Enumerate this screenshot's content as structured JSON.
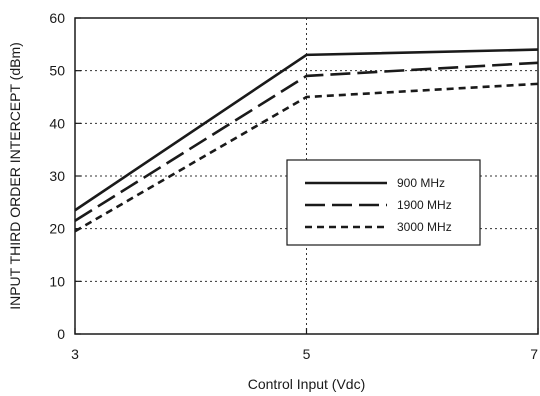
{
  "chart_data": {
    "type": "line",
    "title": "",
    "xlabel": "Control Input (Vdc)",
    "ylabel": "INPUT THIRD ORDER INTERCEPT (dBm)",
    "xlim": [
      3,
      7
    ],
    "ylim": [
      0,
      60
    ],
    "xticks": [
      3,
      5,
      7
    ],
    "yticks": [
      0,
      10,
      20,
      30,
      40,
      50,
      60
    ],
    "grid": "dotted",
    "legend_position": "center-right",
    "series": [
      {
        "name": "900 MHz",
        "style": "solid",
        "x": [
          3,
          5,
          7
        ],
        "y": [
          23.5,
          53,
          54
        ]
      },
      {
        "name": "1900 MHz",
        "style": "dashed",
        "x": [
          3,
          5,
          7
        ],
        "y": [
          21.5,
          49,
          51.5
        ]
      },
      {
        "name": "3000 MHz",
        "style": "dotted",
        "x": [
          3,
          5,
          7
        ],
        "y": [
          19.5,
          45,
          47.5
        ]
      }
    ]
  }
}
